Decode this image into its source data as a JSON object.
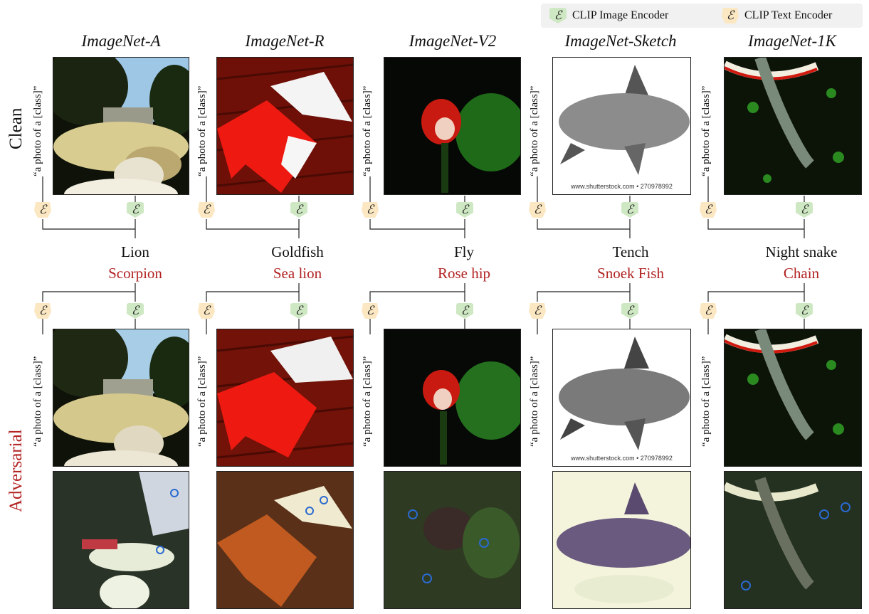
{
  "legend": {
    "image_encoder_label": "CLIP Image Encoder",
    "text_encoder_label": "CLIP Text Encoder",
    "encoder_symbol": "ℰ"
  },
  "row_labels": {
    "clean": "Clean",
    "adversarial": "Adversarial"
  },
  "prompt_template": "“a photo of a [class]”",
  "columns": [
    {
      "dataset": "ImageNet-A",
      "true_label": "Lion",
      "adv_label": "Scorpion"
    },
    {
      "dataset": "ImageNet-R",
      "true_label": "Goldfish",
      "adv_label": "Sea lion"
    },
    {
      "dataset": "ImageNet-V2",
      "true_label": "Fly",
      "adv_label": "Rose hip"
    },
    {
      "dataset": "ImageNet-Sketch",
      "true_label": "Tench",
      "adv_label": "Snoek Fish",
      "watermark": "www.shutterstock.com • 270978992"
    },
    {
      "dataset": "ImageNet-1K",
      "true_label": "Night snake",
      "adv_label": "Chain"
    }
  ],
  "colors": {
    "adv_text": "#b22222",
    "image_encoder": "#cfe8c4",
    "text_encoder": "#fbe8c2",
    "legend_bg": "#f1f1f1"
  }
}
